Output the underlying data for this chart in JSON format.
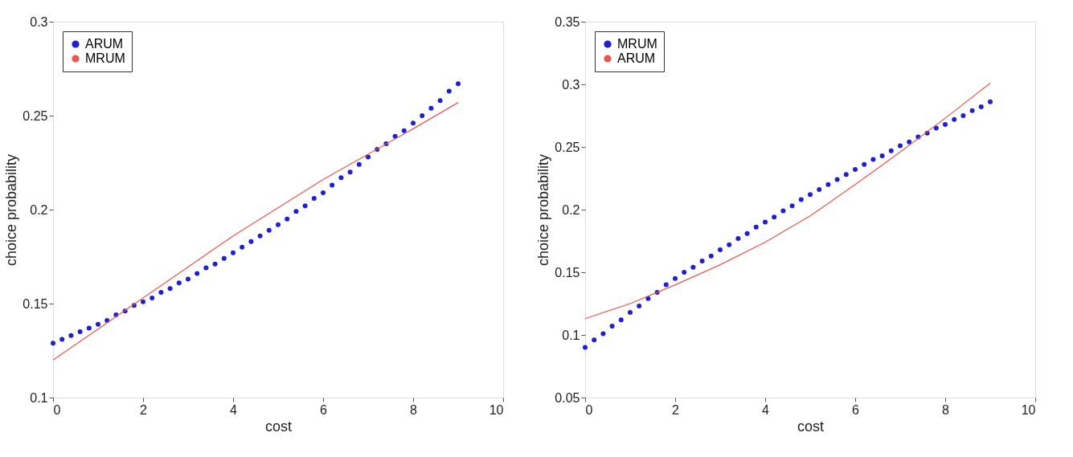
{
  "chart_data": [
    {
      "type": "scatter",
      "xlabel": "cost",
      "ylabel": "choice probability",
      "xlim": [
        0,
        10
      ],
      "ylim": [
        0.1,
        0.3
      ],
      "xticks": [
        0,
        2,
        4,
        6,
        8,
        10
      ],
      "yticks": [
        0.1,
        0.15,
        0.2,
        0.25,
        0.3
      ],
      "grid": false,
      "legend": "top left",
      "series": [
        {
          "name": "ARUM",
          "color": "#1f1fd0",
          "x": [
            0,
            0.2,
            0.4,
            0.6,
            0.8,
            1,
            1.2,
            1.4,
            1.6,
            1.8,
            2,
            2.2,
            2.4,
            2.6,
            2.8,
            3,
            3.2,
            3.4,
            3.6,
            3.8,
            4,
            4.2,
            4.4,
            4.6,
            4.8,
            5,
            5.2,
            5.4,
            5.6,
            5.8,
            6,
            6.2,
            6.4,
            6.6,
            6.8,
            7,
            7.2,
            7.4,
            7.6,
            7.8,
            8,
            8.2,
            8.4,
            8.6,
            8.8,
            9
          ],
          "values": [
            0.129,
            0.131,
            0.133,
            0.135,
            0.137,
            0.139,
            0.141,
            0.144,
            0.146,
            0.149,
            0.151,
            0.153,
            0.156,
            0.158,
            0.161,
            0.163,
            0.166,
            0.169,
            0.171,
            0.174,
            0.177,
            0.18,
            0.183,
            0.186,
            0.189,
            0.192,
            0.195,
            0.199,
            0.202,
            0.206,
            0.209,
            0.213,
            0.217,
            0.22,
            0.224,
            0.228,
            0.232,
            0.235,
            0.239,
            0.242,
            0.246,
            0.25,
            0.254,
            0.258,
            0.263,
            0.267
          ]
        },
        {
          "name": "MRUM",
          "type": "line",
          "color": "#e8584f",
          "x": [
            0,
            2,
            4,
            6,
            8,
            9
          ],
          "values": [
            0.12,
            0.153,
            0.186,
            0.216,
            0.243,
            0.257
          ]
        }
      ]
    },
    {
      "type": "scatter",
      "xlabel": "cost",
      "ylabel": "choice probability",
      "xlim": [
        0,
        10
      ],
      "ylim": [
        0.05,
        0.35
      ],
      "xticks": [
        0,
        2,
        4,
        6,
        8,
        10
      ],
      "yticks": [
        0.05,
        0.1,
        0.15,
        0.2,
        0.25,
        0.3,
        0.35
      ],
      "grid": false,
      "legend": "top left",
      "series": [
        {
          "name": "MRUM",
          "color": "#1f1fd0",
          "x": [
            0,
            0.2,
            0.4,
            0.6,
            0.8,
            1,
            1.2,
            1.4,
            1.6,
            1.8,
            2,
            2.2,
            2.4,
            2.6,
            2.8,
            3,
            3.2,
            3.4,
            3.6,
            3.8,
            4,
            4.2,
            4.4,
            4.6,
            4.8,
            5,
            5.2,
            5.4,
            5.6,
            5.8,
            6,
            6.2,
            6.4,
            6.6,
            6.8,
            7,
            7.2,
            7.4,
            7.6,
            7.8,
            8,
            8.2,
            8.4,
            8.6,
            8.8,
            9
          ],
          "values": [
            0.09,
            0.096,
            0.101,
            0.107,
            0.112,
            0.118,
            0.123,
            0.129,
            0.134,
            0.14,
            0.145,
            0.15,
            0.154,
            0.159,
            0.163,
            0.168,
            0.172,
            0.177,
            0.181,
            0.186,
            0.19,
            0.194,
            0.199,
            0.203,
            0.208,
            0.212,
            0.216,
            0.22,
            0.224,
            0.228,
            0.232,
            0.236,
            0.24,
            0.243,
            0.247,
            0.251,
            0.254,
            0.258,
            0.261,
            0.265,
            0.268,
            0.272,
            0.275,
            0.279,
            0.282,
            0.286
          ]
        },
        {
          "name": "ARUM",
          "type": "line",
          "color": "#e8584f",
          "x": [
            0,
            1,
            2,
            3,
            4,
            5,
            6,
            7,
            8,
            9
          ],
          "values": [
            0.113,
            0.125,
            0.14,
            0.156,
            0.174,
            0.195,
            0.22,
            0.246,
            0.273,
            0.301
          ]
        }
      ]
    }
  ]
}
